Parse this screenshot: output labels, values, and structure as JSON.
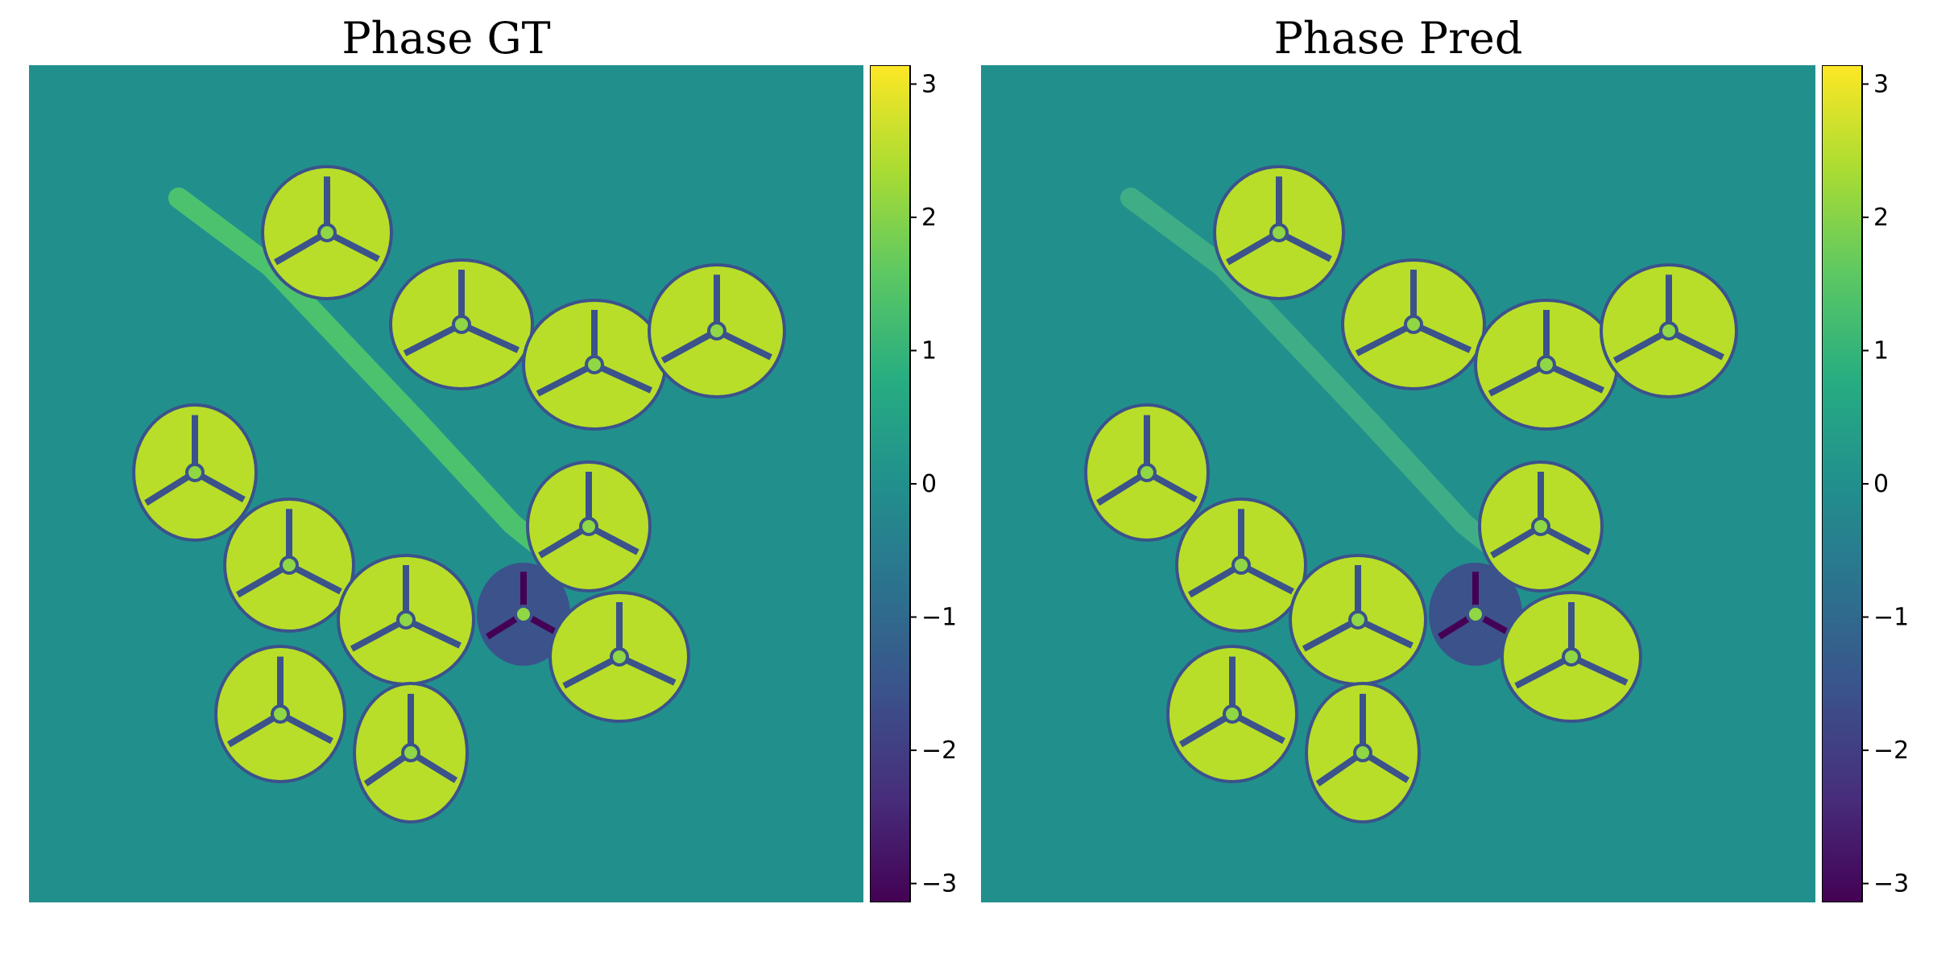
{
  "panels": [
    {
      "title": "Phase GT"
    },
    {
      "title": "Phase Pred"
    }
  ],
  "colorbar": {
    "colormap": "viridis",
    "range": [
      -3.14159,
      3.14159
    ],
    "ticks": [
      "3",
      "2",
      "1",
      "0",
      "−1",
      "−2",
      "−3"
    ],
    "tick_values": [
      3,
      2,
      1,
      0,
      -1,
      -2,
      -3
    ]
  },
  "colors": {
    "background_phase": "#21908d",
    "max_yellow": "#fde725",
    "mid_green": "#9dd93b",
    "dark_purple": "#440154",
    "dark_blue": "#3b528b"
  }
}
